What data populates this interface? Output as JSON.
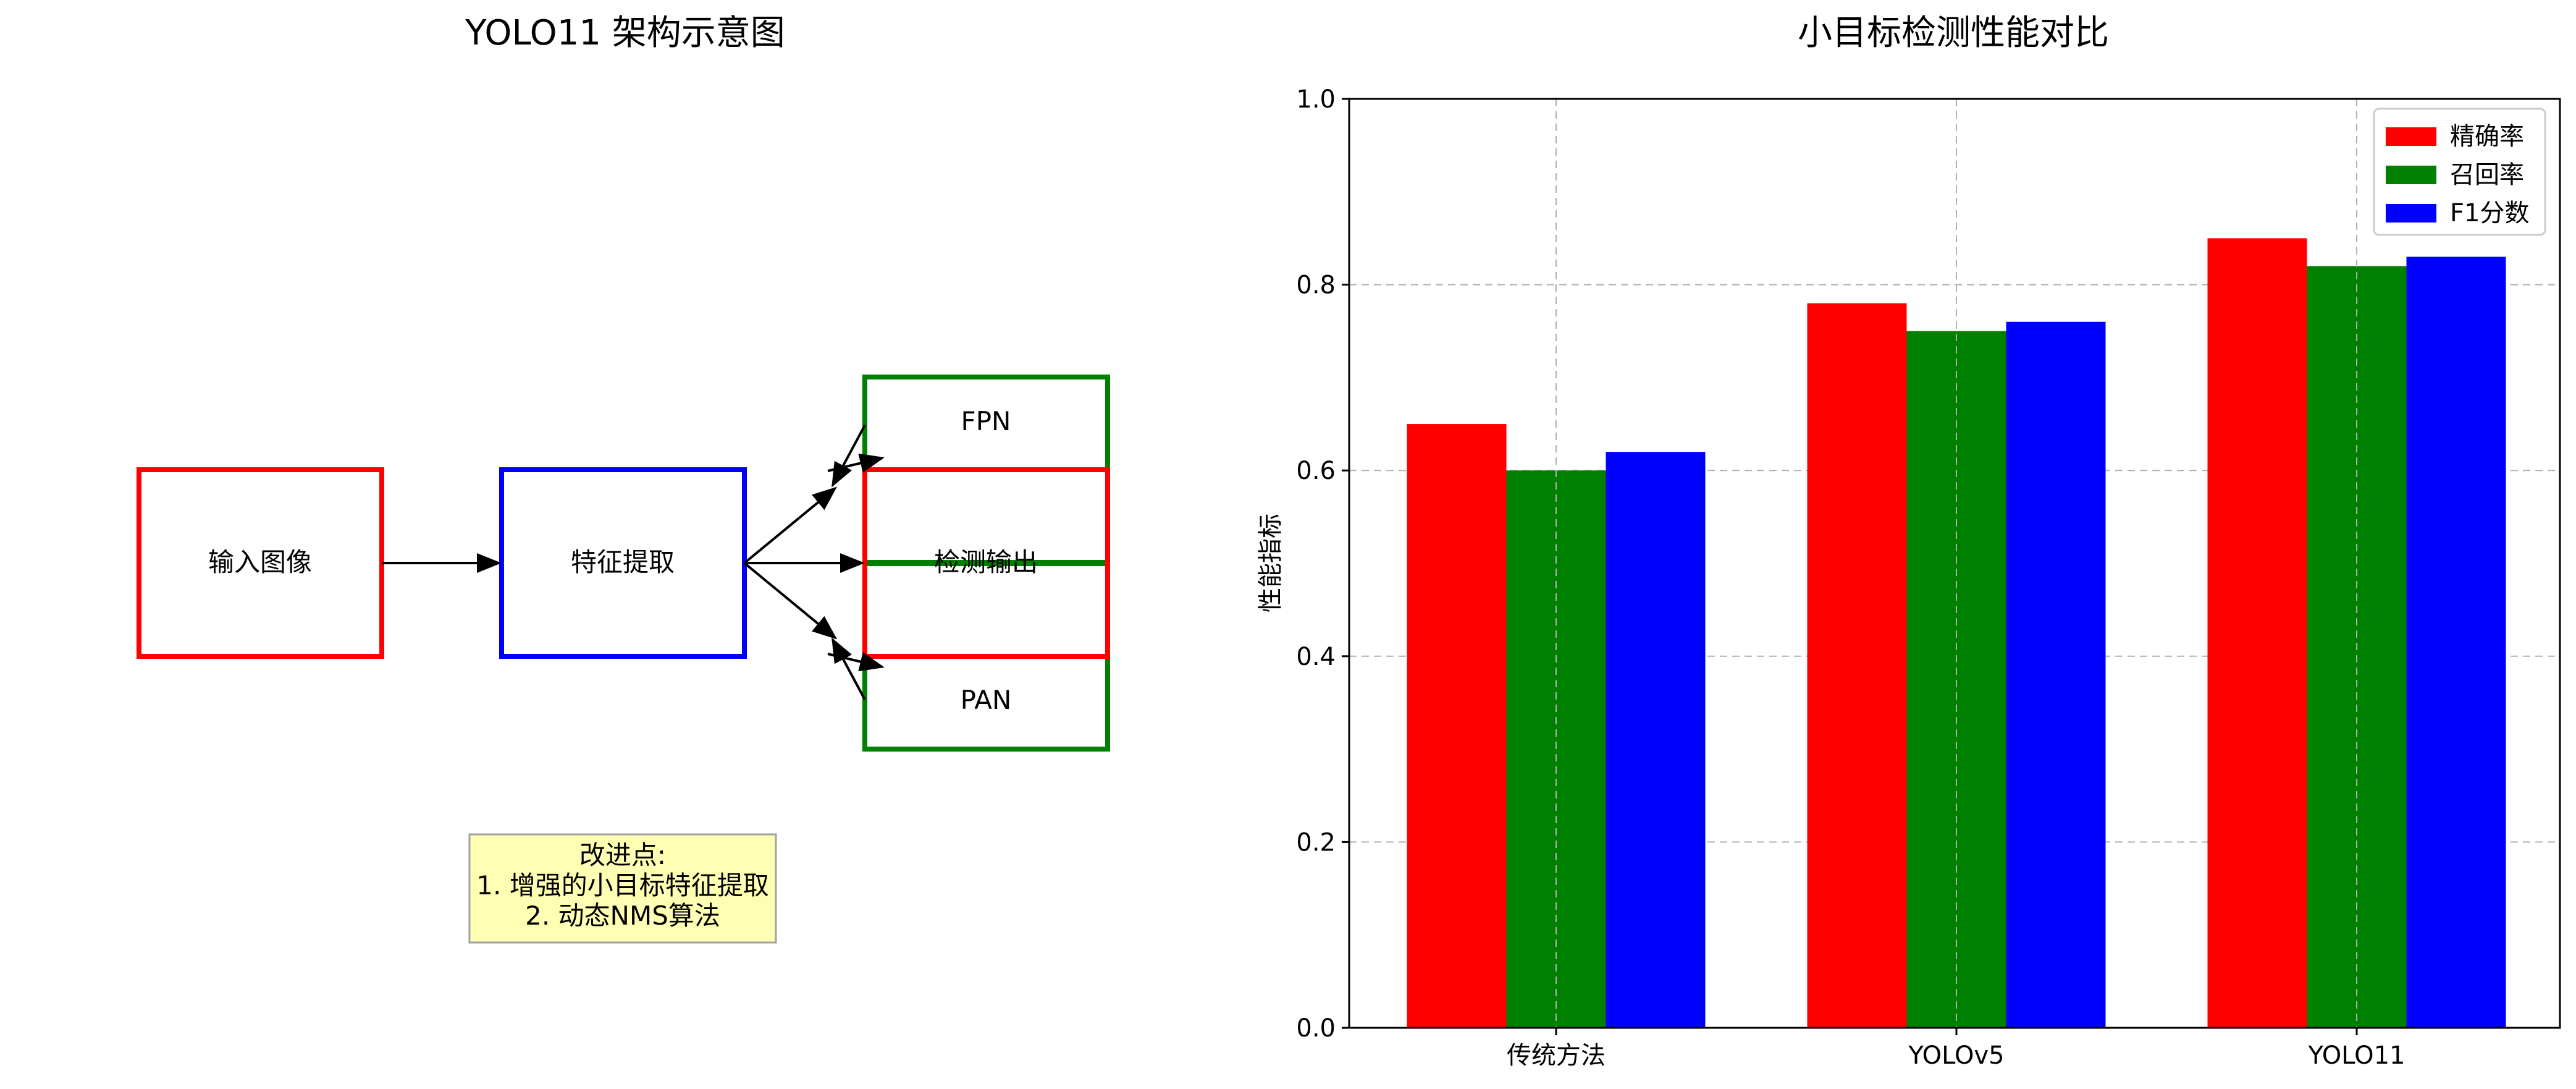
{
  "diagram": {
    "title": "YOLO11 架构示意图",
    "nodes": {
      "input": "输入图像",
      "backbone": "特征提取",
      "fpn": "FPN",
      "output": "检测输出",
      "pan": "PAN"
    },
    "note_lines": [
      "改进点:",
      "1. 增强的小目标特征提取",
      "2. 动态NMS算法"
    ],
    "colors": {
      "input": "#ff0000",
      "backbone": "#0000ff",
      "neck": "#008000",
      "output": "#ff0000",
      "note_fill": "#ffffb3",
      "note_border": "#a0a0a0"
    }
  },
  "chart_data": {
    "type": "bar",
    "title": "小目标检测性能对比",
    "xlabel": "",
    "ylabel": "性能指标",
    "categories": [
      "传统方法",
      "YOLOv5",
      "YOLO11"
    ],
    "series": [
      {
        "name": "精确率",
        "color": "#ff0000",
        "values": [
          0.65,
          0.78,
          0.85
        ]
      },
      {
        "name": "召回率",
        "color": "#008000",
        "values": [
          0.6,
          0.75,
          0.82
        ]
      },
      {
        "name": "F1分数",
        "color": "#0000ff",
        "values": [
          0.62,
          0.76,
          0.83
        ]
      }
    ],
    "ylim": [
      0,
      1.0
    ],
    "yticks": [
      "0.0",
      "0.2",
      "0.4",
      "0.6",
      "0.8",
      "1.0"
    ],
    "grid": true,
    "legend_position": "top-right"
  }
}
